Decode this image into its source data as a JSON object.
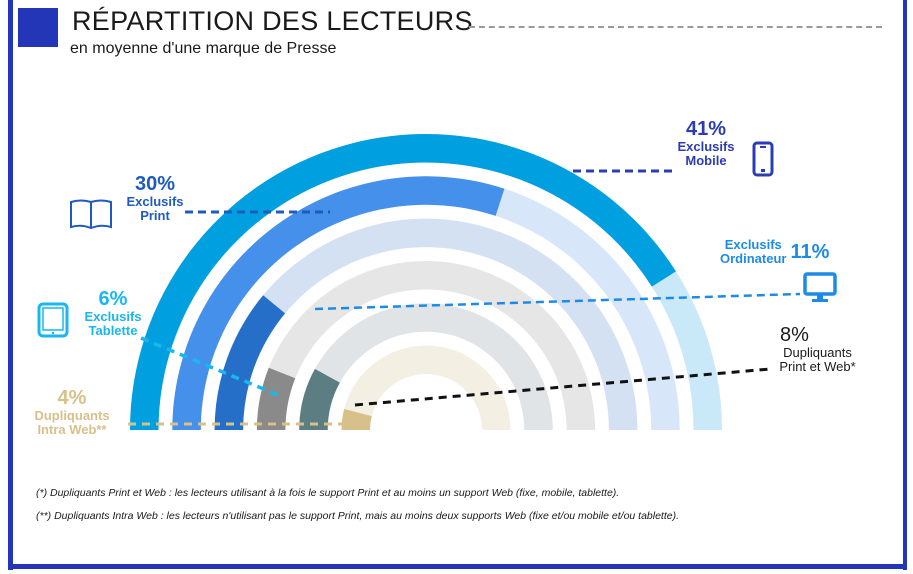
{
  "header": {
    "title": "RÉPARTITION DES LECTEURS",
    "subtitle": "en moyenne d'une marque de Presse"
  },
  "chart_data": {
    "type": "radial-bar",
    "title": "RÉPARTITION DES LECTEURS",
    "subtitle": "en moyenne d'une marque de Presse",
    "series": [
      {
        "name": "Exclusifs Mobile",
        "value": 41,
        "color": "#009fe0",
        "track_color": "#c9e8f8",
        "icon": "smartphone-icon",
        "label_color": "#2c3cb5"
      },
      {
        "name": "Exclusifs Print",
        "value": 30,
        "color": "#4590ea",
        "track_color": "#d7e7f9",
        "icon": "open-book-icon",
        "label_color": "#1f5bbd"
      },
      {
        "name": "Exclusifs Ordinateur",
        "value": 11,
        "color": "#256fc9",
        "track_color": "#d3e1f3",
        "icon": "desktop-monitor-icon",
        "label_color": "#1d8be6"
      },
      {
        "name": "Exclusifs Tablette",
        "value": 6,
        "color": "#8a8a8a",
        "track_color": "#e6e6e6",
        "icon": "tablet-icon",
        "label_color": "#19b7ef"
      },
      {
        "name": "Dupliquants Print et Web*",
        "value": 8,
        "color": "#5c7e82",
        "track_color": "#e0e4e7",
        "icon": null,
        "label_color": "#1a1a1a"
      },
      {
        "name": "Dupliquants Intra Web**",
        "value": 4,
        "color": "#d8c08a",
        "track_color": "#f3efe3",
        "icon": null,
        "label_color": "#d8c08a"
      }
    ],
    "scale_max_percent": 50,
    "legend": "labels around chart"
  },
  "labels": {
    "mobile": {
      "pct": "41%",
      "line1": "Exclusifs",
      "line2": "Mobile"
    },
    "print": {
      "pct": "30%",
      "line1": "Exclusifs",
      "line2": "Print"
    },
    "ordinateur": {
      "pct": "11%",
      "line1": "Exclusifs",
      "line2": "Ordinateur"
    },
    "tablette": {
      "pct": "6%",
      "line1": "Exclusifs",
      "line2": "Tablette"
    },
    "print_web": {
      "pct": "8%",
      "line1": "Dupliquants",
      "line2": "Print et Web*"
    },
    "intra_web": {
      "pct": "4%",
      "line1": "Dupliquants",
      "line2": "Intra Web**"
    }
  },
  "footnotes": [
    "(*) Dupliquants Print et Web : les lecteurs utilisant à la fois le support Print et au moins un support Web (fixe, mobile, tablette).",
    "(**) Dupliquants Intra Web : les lecteurs n'utilisant pas le support Print, mais au moins deux supports Web (fixe et/ou mobile et/ou tablette)."
  ],
  "colors": {
    "frame": "#2436b8",
    "accent": "#2436b8"
  }
}
